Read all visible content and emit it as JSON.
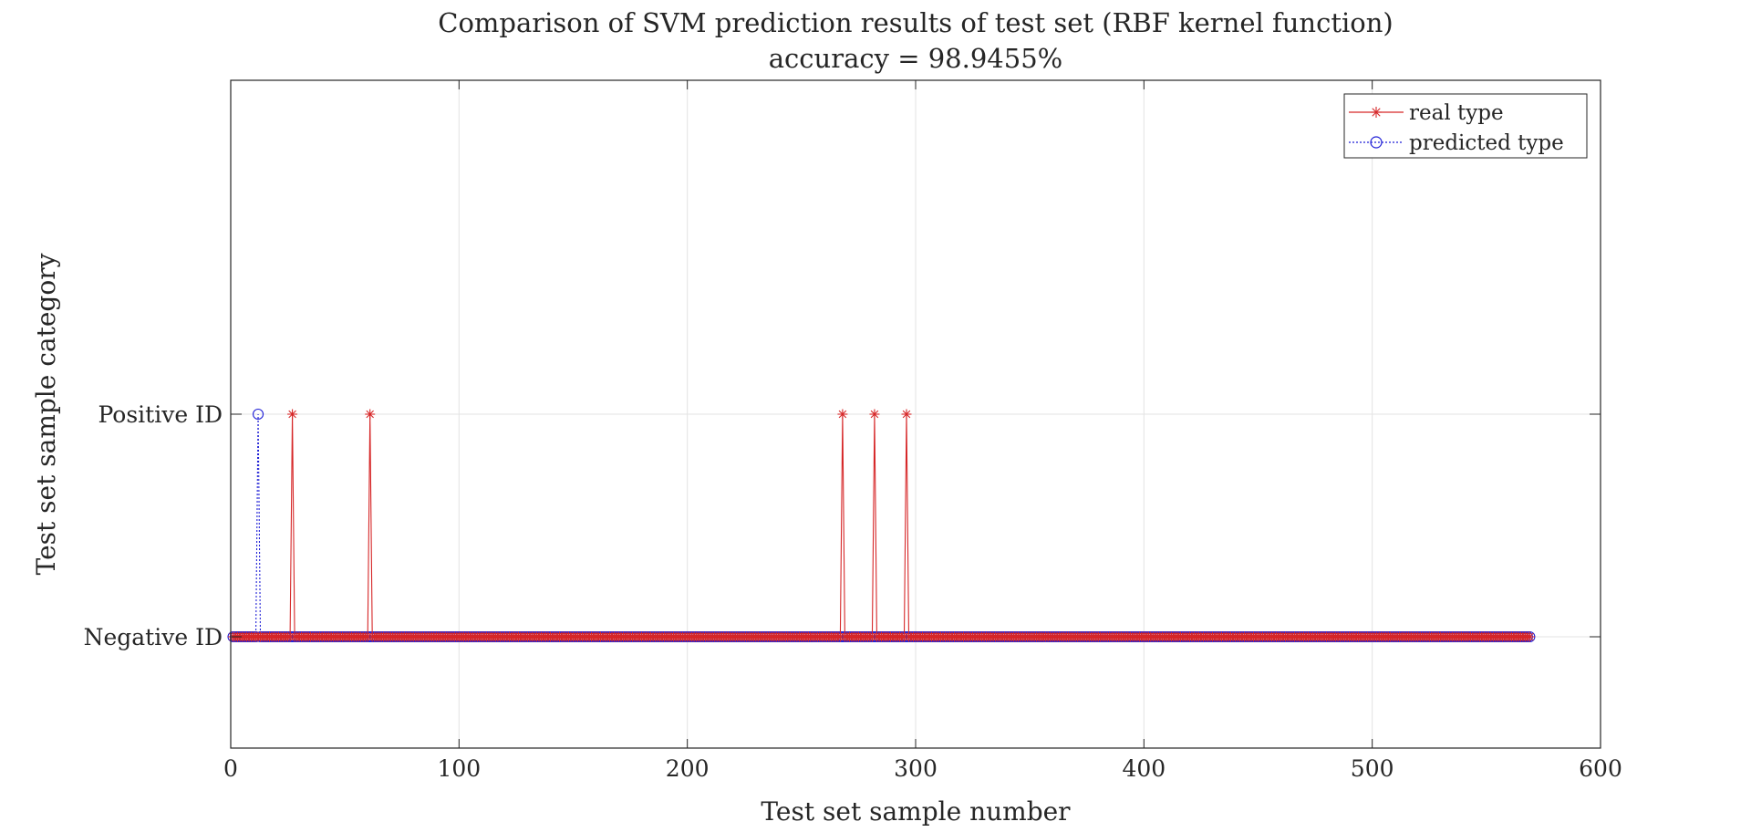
{
  "chart_data": {
    "type": "line",
    "title": "Comparison of SVM prediction results of test set (RBF kernel function)",
    "subtitle": "accuracy = 98.9455%",
    "xlabel": "Test set sample number",
    "ylabel": "Test set sample category",
    "xlim": [
      0,
      600
    ],
    "ylim": [
      0.5,
      3.5
    ],
    "x_ticks": [
      0,
      100,
      200,
      300,
      400,
      500,
      600
    ],
    "y_ticks": [
      {
        "value": 1,
        "label": "Negative ID"
      },
      {
        "value": 2,
        "label": "Positive ID"
      }
    ],
    "grid": true,
    "legend_position": "top-right",
    "n_samples": 569,
    "series": [
      {
        "name": "real type",
        "color": "#d62728",
        "marker": "asterisk",
        "line_style": "solid",
        "baseline_value": 1,
        "positive_indices": [
          27,
          61,
          268,
          282,
          296
        ]
      },
      {
        "name": "predicted type",
        "color": "#1f1fd6",
        "marker": "circle",
        "line_style": "dotted",
        "baseline_value": 1,
        "positive_indices": [
          12
        ]
      }
    ]
  }
}
